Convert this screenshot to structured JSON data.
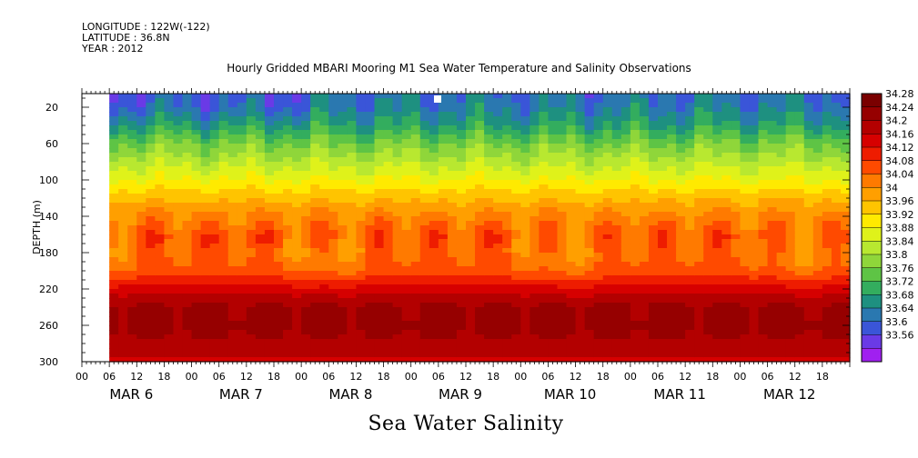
{
  "header": {
    "longitude": "LONGITUDE : 122W(-122)",
    "latitude": "LATITUDE : 36.8N",
    "year": "YEAR : 2012"
  },
  "title": "Hourly Gridded MBARI Mooring M1 Sea Water Temperature and Salinity Observations",
  "chart_data": {
    "type": "heatmap",
    "title": "Hourly Gridded MBARI Mooring M1 Sea Water Temperature and Salinity Observations",
    "xlabel": "Sea Water Salinity",
    "ylabel": "DEPTH (m)",
    "x_start": "MAR 6 2012 00:00",
    "x_end": "MAR 12 2012 23:00",
    "data_start": "MAR 6 2012 06:00",
    "x_hour_ticks": [
      "00",
      "06",
      "12",
      "18"
    ],
    "x_day_labels": [
      "MAR  6",
      "MAR  7",
      "MAR  8",
      "MAR  9",
      "MAR 10",
      "MAR 11",
      "MAR 12"
    ],
    "y_ticks": [
      20,
      60,
      100,
      140,
      180,
      220,
      260,
      300
    ],
    "ylim": [
      300,
      5
    ],
    "colorbar": {
      "levels": [
        34.28,
        34.24,
        34.2,
        34.16,
        34.12,
        34.08,
        34.04,
        34,
        33.96,
        33.92,
        33.88,
        33.84,
        33.8,
        33.76,
        33.72,
        33.68,
        33.64,
        33.6,
        33.56
      ],
      "colors": [
        "#7a0000",
        "#960000",
        "#b30000",
        "#d60000",
        "#ee1c00",
        "#ff4a00",
        "#ff7a00",
        "#ff9f00",
        "#ffc400",
        "#ffea00",
        "#dff21a",
        "#b8e830",
        "#8fd63a",
        "#5ec445",
        "#33ad5e",
        "#1e9080",
        "#2a78b0",
        "#3a55d8",
        "#6a3ae6",
        "#a020f0"
      ]
    },
    "depth_profile": {
      "depths": [
        5,
        20,
        40,
        60,
        80,
        100,
        120,
        140,
        160,
        180,
        200,
        220,
        240,
        260,
        280,
        300
      ],
      "salinity": [
        33.65,
        33.67,
        33.72,
        33.8,
        33.86,
        33.92,
        33.99,
        34.05,
        34.09,
        34.08,
        34.1,
        34.18,
        34.25,
        34.26,
        34.23,
        34.19
      ]
    }
  }
}
